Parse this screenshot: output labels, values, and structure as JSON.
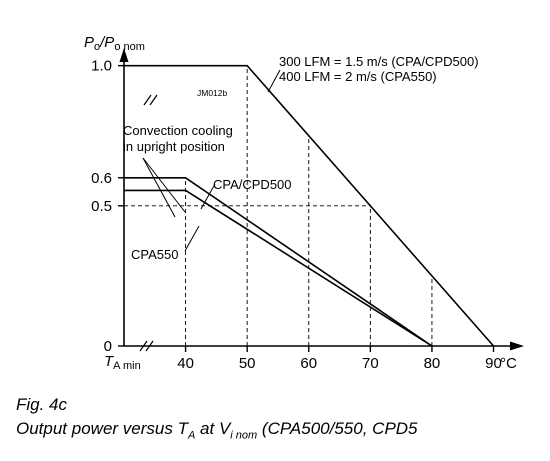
{
  "chart_data": {
    "type": "line",
    "code": "JM012b",
    "ylabel": {
      "main": "P",
      "sub1": "o",
      "slash": "/P",
      "sub2": "o nom"
    },
    "xlabel": "°C",
    "x_origin_label": {
      "main": "T",
      "sub": "A min"
    },
    "xlim": [
      30,
      93
    ],
    "ylim": [
      0,
      1.12
    ],
    "x_ticks": [
      {
        "value": 40,
        "label": "40"
      },
      {
        "value": 50,
        "label": "50"
      },
      {
        "value": 60,
        "label": "60"
      },
      {
        "value": 70,
        "label": "70"
      },
      {
        "value": 80,
        "label": "80"
      },
      {
        "value": 90,
        "label": "90"
      }
    ],
    "y_ticks": [
      {
        "value": 0,
        "label": "0"
      },
      {
        "value": 0.5,
        "label": "0.5"
      },
      {
        "value": 0.6,
        "label": "0.6"
      },
      {
        "value": 1.0,
        "label": "1.0"
      }
    ],
    "series": [
      {
        "key": "forced_air",
        "points": [
          [
            30,
            1.0
          ],
          [
            50,
            1.0
          ],
          [
            90,
            0
          ]
        ],
        "labels": [
          "300 LFM = 1.5 m/s (CPA/CPD500)",
          "400 LFM = 2 m/s (CPA550)"
        ]
      },
      {
        "key": "cpa_cpd500",
        "name": "CPA/CPD500",
        "points": [
          [
            30,
            0.6
          ],
          [
            40,
            0.6
          ],
          [
            80,
            0
          ]
        ]
      },
      {
        "key": "cpa550",
        "name": "CPA550",
        "points": [
          [
            30,
            0.555
          ],
          [
            40,
            0.555
          ],
          [
            80,
            0
          ]
        ]
      }
    ],
    "annotations": {
      "convection": [
        "Convection cooling",
        "in upright position"
      ]
    }
  },
  "figure": {
    "label": "Fig. 4c",
    "caption_parts": [
      "Output power versus ",
      "T",
      "A",
      " at ",
      "V",
      "i nom",
      " (CPA500/550, CPD5"
    ]
  }
}
